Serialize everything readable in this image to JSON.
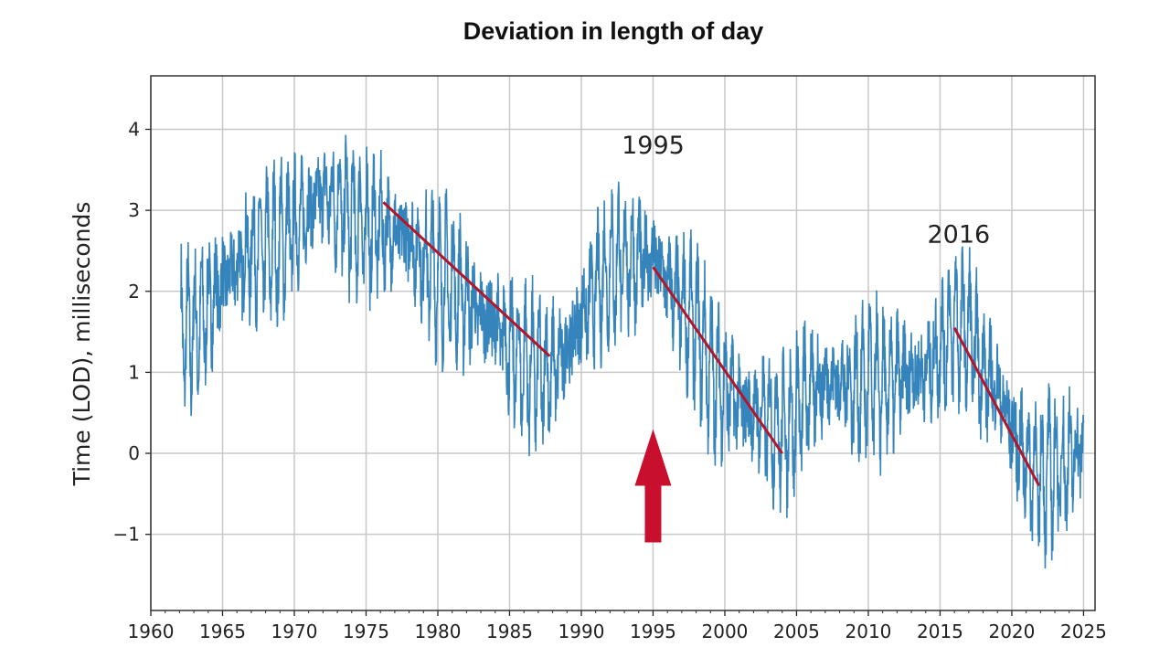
{
  "chart_data": {
    "type": "line",
    "title": "Deviation in length of day",
    "xlabel": "",
    "ylabel": "Time (LOD), milliseconds",
    "xlim": [
      1960,
      2025.8
    ],
    "ylim": [
      -1.94,
      4.66
    ],
    "grid": true,
    "x_ticks": [
      "1960",
      "1965",
      "1970",
      "1975",
      "1980",
      "1985",
      "1990",
      "1995",
      "2000",
      "2005",
      "2010",
      "2015",
      "2020",
      "2025"
    ],
    "y_ticks": [
      "4",
      "3",
      "2",
      "1",
      "0",
      "−1"
    ],
    "series_color": "#1f77b4",
    "series": [
      {
        "x": [
          1962,
          1963,
          1964,
          1965,
          1966,
          1967,
          1968,
          1969,
          1970,
          1971,
          1972,
          1973,
          1974,
          1975,
          1976,
          1977,
          1978,
          1979,
          1980,
          1981,
          1982,
          1983,
          1984,
          1985,
          1986,
          1987,
          1988,
          1989,
          1990,
          1991,
          1992,
          1993,
          1994,
          1995,
          1996,
          1997,
          1998,
          1999,
          2000,
          2001,
          2002,
          2003,
          2004,
          2005,
          2006,
          2007,
          2008,
          2009,
          2010,
          2011,
          2012,
          2013,
          2014,
          2015,
          2016,
          2017,
          2018,
          2019,
          2020,
          2021,
          2022,
          2023,
          2024,
          2025
        ],
        "values": [
          1.5,
          1.5,
          1.8,
          2.1,
          2.3,
          2.5,
          2.5,
          2.6,
          2.8,
          3.0,
          3.2,
          3.1,
          2.9,
          2.8,
          2.8,
          2.7,
          2.7,
          2.4,
          2.2,
          2.1,
          1.9,
          1.7,
          1.6,
          1.3,
          1.1,
          1.0,
          1.0,
          1.3,
          1.7,
          2.0,
          2.3,
          2.4,
          2.4,
          2.4,
          2.1,
          1.8,
          1.6,
          1.0,
          0.8,
          0.6,
          0.5,
          0.4,
          0.3,
          0.5,
          0.8,
          0.9,
          0.9,
          0.8,
          0.9,
          0.8,
          0.9,
          1.0,
          1.0,
          1.3,
          1.6,
          1.5,
          1.0,
          0.8,
          0.3,
          -0.1,
          -0.3,
          -0.2,
          -0.1,
          0.1
        ],
        "seasonal_amplitude": 0.75
      }
    ],
    "trend_lines": [
      {
        "from": [
          1976.2,
          3.1
        ],
        "to": [
          1987.8,
          1.2
        ]
      },
      {
        "from": [
          1995.0,
          2.3
        ],
        "to": [
          2004.0,
          0.0
        ]
      },
      {
        "from": [
          2016.0,
          1.55
        ],
        "to": [
          2021.9,
          -0.4
        ]
      }
    ],
    "trend_color": "#b0172a",
    "annotations": [
      {
        "text": "1995",
        "x": 1995,
        "y": 3.7
      },
      {
        "text": "2016",
        "x": 2016.3,
        "y": 2.6
      }
    ],
    "arrow": {
      "x": 1995,
      "from_y": -1.1,
      "to_y": 0.3,
      "color": "#c8102e"
    }
  }
}
